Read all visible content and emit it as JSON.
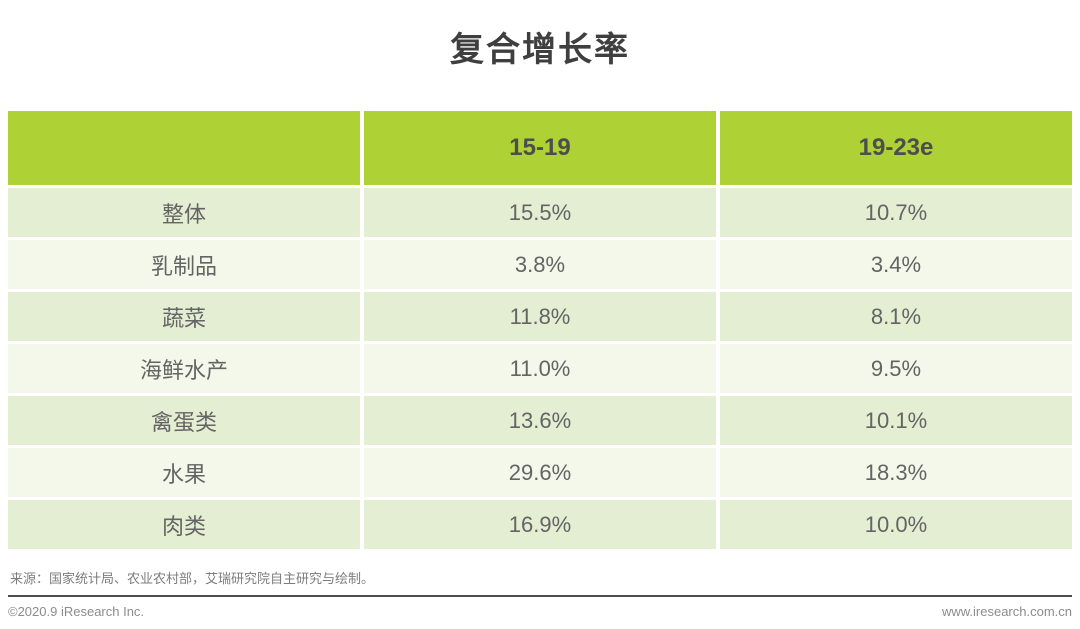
{
  "title": "复合增长率",
  "table": {
    "columns": {
      "c1": "",
      "c2": "15-19",
      "c3": "19-23e"
    },
    "rows": [
      {
        "label": "整体",
        "v1": "15.5%",
        "v2": "10.7%"
      },
      {
        "label": "乳制品",
        "v1": "3.8%",
        "v2": "3.4%"
      },
      {
        "label": "蔬菜",
        "v1": "11.8%",
        "v2": "8.1%"
      },
      {
        "label": "海鲜水产",
        "v1": "11.0%",
        "v2": "9.5%"
      },
      {
        "label": "禽蛋类",
        "v1": "13.6%",
        "v2": "10.1%"
      },
      {
        "label": "水果",
        "v1": "29.6%",
        "v2": "18.3%"
      },
      {
        "label": "肉类",
        "v1": "16.9%",
        "v2": "10.0%"
      }
    ]
  },
  "footer": {
    "source": "来源：国家统计局、农业农村部，艾瑞研究院自主研究与绘制。",
    "copyright": "©2020.9 iResearch Inc.",
    "website": "www.iresearch.com.cn"
  },
  "colors": {
    "header_green": "#aed136",
    "row_dark": "#e4eed3",
    "row_light": "#f3f8ea",
    "title_text": "#3f3f3f",
    "cell_text": "#646464",
    "footer_text": "#8c8c8c"
  },
  "chart_data": {
    "type": "table",
    "title": "复合增长率",
    "categories": [
      "整体",
      "乳制品",
      "蔬菜",
      "海鲜水产",
      "禽蛋类",
      "水果",
      "肉类"
    ],
    "series": [
      {
        "name": "15-19",
        "values": [
          15.5,
          3.8,
          11.8,
          11.0,
          13.6,
          29.6,
          16.9
        ]
      },
      {
        "name": "19-23e",
        "values": [
          10.7,
          3.4,
          8.1,
          9.5,
          10.1,
          18.3,
          10.0
        ]
      }
    ],
    "unit": "%",
    "source": "国家统计局、农业农村部，艾瑞研究院自主研究与绘制"
  }
}
